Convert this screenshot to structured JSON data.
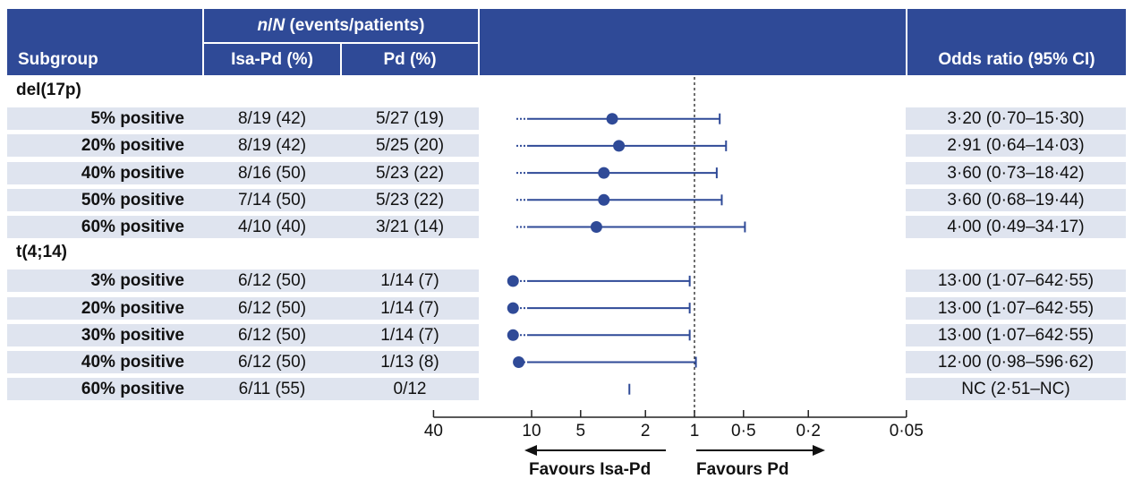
{
  "header": {
    "subgroup": "Subgroup",
    "events_prefix_italic_n": "n",
    "events_slash": "/",
    "events_prefix_italic_N": "N",
    "events_suffix": " (events/patients)",
    "col_isa": "Isa-Pd (%)",
    "col_pd": "Pd (%)",
    "col_or": "Odds ratio (95% CI)"
  },
  "groups": [
    {
      "label": "del(17p)",
      "rows": [
        {
          "subgroup": "5% positive",
          "isa": "8/19 (42)",
          "pd": "5/27 (19)",
          "or_text": "3·20 (0·70–15·30)"
        },
        {
          "subgroup": "20% positive",
          "isa": "8/19 (42)",
          "pd": "5/25 (20)",
          "or_text": "2·91 (0·64–14·03)"
        },
        {
          "subgroup": "40% positive",
          "isa": "8/16 (50)",
          "pd": "5/23 (22)",
          "or_text": "3·60 (0·73–18·42)"
        },
        {
          "subgroup": "50% positive",
          "isa": "7/14 (50)",
          "pd": "5/23 (22)",
          "or_text": "3·60 (0·68–19·44)"
        },
        {
          "subgroup": "60% positive",
          "isa": "4/10 (40)",
          "pd": "3/21 (14)",
          "or_text": "4·00 (0·49–34·17)"
        }
      ]
    },
    {
      "label": "t(4;14)",
      "rows": [
        {
          "subgroup": "3% positive",
          "isa": "6/12 (50)",
          "pd": "1/14 (7)",
          "or_text": "13·00 (1·07–642·55)"
        },
        {
          "subgroup": "20% positive",
          "isa": "6/12 (50)",
          "pd": "1/14 (7)",
          "or_text": "13·00 (1·07–642·55)"
        },
        {
          "subgroup": "30% positive",
          "isa": "6/12 (50)",
          "pd": "1/14 (7)",
          "or_text": "13·00 (1·07–642·55)"
        },
        {
          "subgroup": "40% positive",
          "isa": "6/12 (50)",
          "pd": "1/13 (8)",
          "or_text": "12·00 (0·98–596·62)"
        },
        {
          "subgroup": "60% positive",
          "isa": "6/11 (55)",
          "pd": "0/12",
          "or_text": "NC (2·51–NC)"
        }
      ]
    }
  ],
  "chart_data": {
    "type": "forest",
    "x_scale": "log",
    "x_reversed": true,
    "reference_line": 1,
    "ticks": [
      {
        "value": 40,
        "label": "40"
      },
      {
        "value": 10,
        "label": "10"
      },
      {
        "value": 5,
        "label": "5"
      },
      {
        "value": 2,
        "label": "2"
      },
      {
        "value": 1,
        "label": "1"
      },
      {
        "value": 0.5,
        "label": "0·5"
      },
      {
        "value": 0.2,
        "label": "0·2"
      },
      {
        "value": 0.05,
        "label": "0·05"
      }
    ],
    "favours_left": "Favours Isa-Pd",
    "favours_right": "Favours Pd",
    "points": [
      {
        "group": "del(17p)",
        "subgroup": "5% positive",
        "or": 3.2,
        "lo": 0.7,
        "hi": 15.3
      },
      {
        "group": "del(17p)",
        "subgroup": "20% positive",
        "or": 2.91,
        "lo": 0.64,
        "hi": 14.03
      },
      {
        "group": "del(17p)",
        "subgroup": "40% positive",
        "or": 3.6,
        "lo": 0.73,
        "hi": 18.42
      },
      {
        "group": "del(17p)",
        "subgroup": "50% positive",
        "or": 3.6,
        "lo": 0.68,
        "hi": 19.44
      },
      {
        "group": "del(17p)",
        "subgroup": "60% positive",
        "or": 4.0,
        "lo": 0.49,
        "hi": 34.17
      },
      {
        "group": "t(4;14)",
        "subgroup": "3% positive",
        "or": 13.0,
        "lo": 1.07,
        "hi": 642.55
      },
      {
        "group": "t(4;14)",
        "subgroup": "20% positive",
        "or": 13.0,
        "lo": 1.07,
        "hi": 642.55
      },
      {
        "group": "t(4;14)",
        "subgroup": "30% positive",
        "or": 13.0,
        "lo": 1.07,
        "hi": 642.55
      },
      {
        "group": "t(4;14)",
        "subgroup": "40% positive",
        "or": 12.0,
        "lo": 0.98,
        "hi": 596.62
      },
      {
        "group": "t(4;14)",
        "subgroup": "60% positive",
        "or": null,
        "lo": 2.51,
        "hi": null
      }
    ]
  },
  "colors": {
    "header_bg": "#2f4a97",
    "band": "#dfe4ef",
    "marker": "#2f4a97"
  }
}
